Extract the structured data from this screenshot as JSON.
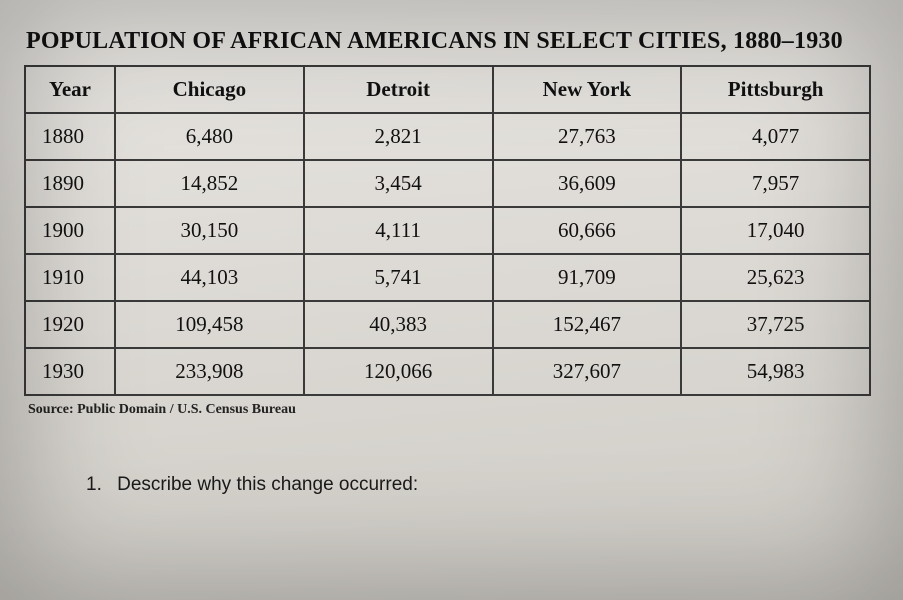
{
  "title": "POPULATION OF AFRICAN AMERICANS IN SELECT CITIES, 1880–1930",
  "table": {
    "type": "table",
    "columns": [
      "Year",
      "Chicago",
      "Detroit",
      "New York",
      "Pittsburgh"
    ],
    "rows": [
      [
        "1880",
        "6,480",
        "2,821",
        "27,763",
        "4,077"
      ],
      [
        "1890",
        "14,852",
        "3,454",
        "36,609",
        "7,957"
      ],
      [
        "1900",
        "30,150",
        "4,111",
        "60,666",
        "17,040"
      ],
      [
        "1910",
        "44,103",
        "5,741",
        "91,709",
        "25,623"
      ],
      [
        "1920",
        "109,458",
        "40,383",
        "152,467",
        "37,725"
      ],
      [
        "1930",
        "233,908",
        "120,066",
        "327,607",
        "54,983"
      ]
    ],
    "border_color": "#3a3a3a",
    "header_fontsize": 21,
    "cell_fontsize": 21,
    "col_widths": [
      "90px",
      "auto",
      "auto",
      "auto",
      "auto"
    ],
    "year_align": "left",
    "num_align": "center"
  },
  "source": "Source: Public Domain / U.S. Census Bureau",
  "question": {
    "number": "1.",
    "text": "Describe why this change occurred:"
  },
  "colors": {
    "background_top": "#e8e6e2",
    "background_bottom": "#cfccc6",
    "text": "#111111"
  }
}
